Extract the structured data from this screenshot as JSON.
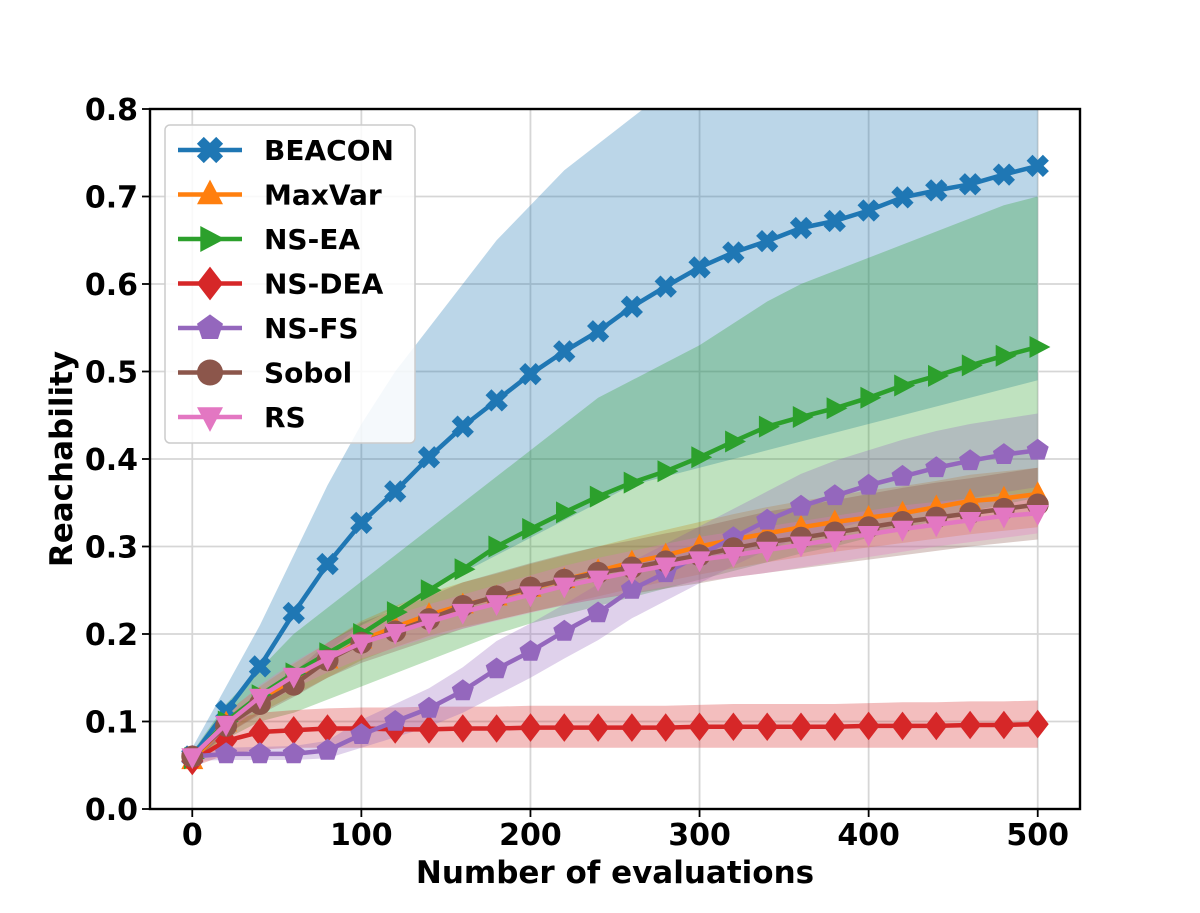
{
  "chart_data": {
    "type": "line",
    "title": "",
    "xlabel": "Number of evaluations",
    "ylabel": "Reachability",
    "xlim": [
      -25,
      525
    ],
    "ylim": [
      0.0,
      0.8
    ],
    "xticks": [
      0,
      100,
      200,
      300,
      400,
      500
    ],
    "yticks": [
      0.0,
      0.1,
      0.2,
      0.3,
      0.4,
      0.5,
      0.6,
      0.7,
      0.8
    ],
    "xtick_labels": [
      "0",
      "100",
      "200",
      "300",
      "400",
      "500"
    ],
    "ytick_labels": [
      "0.0",
      "0.1",
      "0.2",
      "0.3",
      "0.4",
      "0.5",
      "0.6",
      "0.7",
      "0.8"
    ],
    "grid": true,
    "legend_position": "top-left",
    "x": [
      0,
      20,
      40,
      60,
      80,
      100,
      120,
      140,
      160,
      180,
      200,
      220,
      240,
      260,
      280,
      300,
      320,
      340,
      360,
      380,
      400,
      420,
      440,
      460,
      480,
      500
    ],
    "series": [
      {
        "name": "BEACON",
        "color": "#1f77b4",
        "marker": "x-filled",
        "values": [
          0.06,
          0.112,
          0.163,
          0.224,
          0.28,
          0.327,
          0.363,
          0.402,
          0.437,
          0.467,
          0.497,
          0.523,
          0.546,
          0.574,
          0.597,
          0.619,
          0.636,
          0.649,
          0.664,
          0.672,
          0.684,
          0.699,
          0.707,
          0.714,
          0.725,
          0.735
        ],
        "lower": [
          0.05,
          0.09,
          0.12,
          0.15,
          0.18,
          0.21,
          0.23,
          0.25,
          0.27,
          0.29,
          0.31,
          0.33,
          0.35,
          0.37,
          0.38,
          0.39,
          0.4,
          0.41,
          0.42,
          0.43,
          0.44,
          0.45,
          0.46,
          0.47,
          0.48,
          0.49
        ],
        "upper": [
          0.07,
          0.14,
          0.21,
          0.29,
          0.37,
          0.44,
          0.5,
          0.55,
          0.6,
          0.65,
          0.69,
          0.73,
          0.76,
          0.79,
          0.82,
          0.84,
          0.86,
          0.88,
          0.89,
          0.9,
          0.91,
          0.92,
          0.93,
          0.93,
          0.94,
          0.95
        ]
      },
      {
        "name": "MaxVar",
        "color": "#ff7f0e",
        "marker": "triangle-up",
        "values": [
          0.055,
          0.098,
          0.125,
          0.148,
          0.17,
          0.193,
          0.208,
          0.222,
          0.233,
          0.242,
          0.252,
          0.262,
          0.272,
          0.282,
          0.29,
          0.3,
          0.308,
          0.315,
          0.322,
          0.328,
          0.333,
          0.338,
          0.345,
          0.352,
          0.355,
          0.36
        ],
        "lower": [
          0.05,
          0.085,
          0.11,
          0.13,
          0.15,
          0.17,
          0.185,
          0.198,
          0.208,
          0.216,
          0.225,
          0.234,
          0.243,
          0.252,
          0.26,
          0.268,
          0.275,
          0.282,
          0.288,
          0.294,
          0.299,
          0.304,
          0.309,
          0.314,
          0.318,
          0.322
        ],
        "upper": [
          0.062,
          0.11,
          0.14,
          0.166,
          0.19,
          0.215,
          0.232,
          0.247,
          0.259,
          0.269,
          0.28,
          0.29,
          0.3,
          0.31,
          0.319,
          0.328,
          0.337,
          0.345,
          0.352,
          0.358,
          0.364,
          0.369,
          0.375,
          0.382,
          0.386,
          0.39
        ]
      },
      {
        "name": "NS-EA",
        "color": "#2ca02c",
        "marker": "triangle-right",
        "values": [
          0.058,
          0.1,
          0.13,
          0.155,
          0.178,
          0.2,
          0.225,
          0.25,
          0.274,
          0.3,
          0.32,
          0.339,
          0.357,
          0.373,
          0.386,
          0.402,
          0.42,
          0.437,
          0.448,
          0.458,
          0.47,
          0.484,
          0.495,
          0.507,
          0.518,
          0.528
        ],
        "lower": [
          0.05,
          0.08,
          0.1,
          0.11,
          0.125,
          0.14,
          0.155,
          0.17,
          0.185,
          0.2,
          0.212,
          0.222,
          0.232,
          0.242,
          0.252,
          0.262,
          0.272,
          0.282,
          0.292,
          0.3,
          0.31,
          0.32,
          0.33,
          0.34,
          0.348,
          0.356
        ],
        "upper": [
          0.065,
          0.12,
          0.16,
          0.2,
          0.23,
          0.26,
          0.29,
          0.32,
          0.35,
          0.38,
          0.41,
          0.44,
          0.47,
          0.49,
          0.51,
          0.53,
          0.555,
          0.58,
          0.6,
          0.615,
          0.63,
          0.645,
          0.66,
          0.675,
          0.69,
          0.7
        ]
      },
      {
        "name": "NS-DEA",
        "color": "#d62728",
        "marker": "diamond",
        "values": [
          0.055,
          0.078,
          0.088,
          0.09,
          0.092,
          0.092,
          0.091,
          0.091,
          0.092,
          0.092,
          0.093,
          0.093,
          0.093,
          0.093,
          0.093,
          0.094,
          0.094,
          0.094,
          0.094,
          0.094,
          0.095,
          0.095,
          0.095,
          0.096,
          0.096,
          0.097
        ],
        "lower": [
          0.048,
          0.062,
          0.068,
          0.07,
          0.07,
          0.07,
          0.07,
          0.07,
          0.07,
          0.07,
          0.07,
          0.07,
          0.07,
          0.07,
          0.07,
          0.07,
          0.07,
          0.07,
          0.07,
          0.07,
          0.07,
          0.07,
          0.07,
          0.07,
          0.07,
          0.07
        ],
        "upper": [
          0.065,
          0.1,
          0.11,
          0.113,
          0.115,
          0.116,
          0.116,
          0.117,
          0.117,
          0.117,
          0.118,
          0.118,
          0.118,
          0.118,
          0.118,
          0.119,
          0.12,
          0.12,
          0.12,
          0.12,
          0.121,
          0.122,
          0.122,
          0.123,
          0.123,
          0.124
        ]
      },
      {
        "name": "NS-FS",
        "color": "#9467bd",
        "marker": "pentagon",
        "values": [
          0.06,
          0.063,
          0.063,
          0.063,
          0.067,
          0.085,
          0.1,
          0.115,
          0.135,
          0.16,
          0.18,
          0.203,
          0.224,
          0.251,
          0.27,
          0.29,
          0.31,
          0.33,
          0.346,
          0.358,
          0.37,
          0.38,
          0.39,
          0.398,
          0.405,
          0.41
        ],
        "lower": [
          0.055,
          0.056,
          0.056,
          0.056,
          0.058,
          0.07,
          0.082,
          0.094,
          0.11,
          0.13,
          0.15,
          0.172,
          0.193,
          0.218,
          0.238,
          0.258,
          0.278,
          0.296,
          0.31,
          0.32,
          0.33,
          0.34,
          0.348,
          0.355,
          0.362,
          0.368
        ],
        "upper": [
          0.065,
          0.07,
          0.071,
          0.072,
          0.078,
          0.102,
          0.12,
          0.138,
          0.162,
          0.192,
          0.212,
          0.234,
          0.257,
          0.283,
          0.303,
          0.323,
          0.343,
          0.363,
          0.383,
          0.398,
          0.41,
          0.422,
          0.432,
          0.44,
          0.446,
          0.452
        ]
      },
      {
        "name": "Sobol",
        "color": "#8c564b",
        "marker": "circle",
        "values": [
          0.06,
          0.095,
          0.12,
          0.142,
          0.17,
          0.19,
          0.203,
          0.217,
          0.232,
          0.243,
          0.253,
          0.262,
          0.27,
          0.276,
          0.283,
          0.29,
          0.298,
          0.305,
          0.31,
          0.316,
          0.322,
          0.328,
          0.333,
          0.338,
          0.343,
          0.348
        ],
        "lower": [
          0.055,
          0.085,
          0.108,
          0.128,
          0.15,
          0.167,
          0.18,
          0.193,
          0.206,
          0.216,
          0.225,
          0.233,
          0.24,
          0.246,
          0.252,
          0.258,
          0.265,
          0.27,
          0.275,
          0.28,
          0.285,
          0.29,
          0.295,
          0.3,
          0.304,
          0.308
        ],
        "upper": [
          0.066,
          0.105,
          0.132,
          0.156,
          0.19,
          0.213,
          0.228,
          0.243,
          0.259,
          0.27,
          0.281,
          0.291,
          0.3,
          0.307,
          0.315,
          0.322,
          0.331,
          0.34,
          0.346,
          0.353,
          0.36,
          0.367,
          0.373,
          0.378,
          0.384,
          0.39
        ]
      },
      {
        "name": "RS",
        "color": "#e377c2",
        "marker": "triangle-down",
        "values": [
          0.06,
          0.097,
          0.128,
          0.152,
          0.172,
          0.19,
          0.202,
          0.214,
          0.225,
          0.235,
          0.245,
          0.255,
          0.263,
          0.271,
          0.278,
          0.285,
          0.29,
          0.296,
          0.302,
          0.308,
          0.314,
          0.32,
          0.325,
          0.33,
          0.335,
          0.338
        ],
        "lower": [
          0.055,
          0.088,
          0.116,
          0.138,
          0.156,
          0.172,
          0.184,
          0.196,
          0.206,
          0.215,
          0.224,
          0.233,
          0.24,
          0.247,
          0.254,
          0.26,
          0.265,
          0.27,
          0.276,
          0.282,
          0.288,
          0.294,
          0.3,
          0.305,
          0.31,
          0.315
        ],
        "upper": [
          0.066,
          0.108,
          0.142,
          0.168,
          0.19,
          0.21,
          0.222,
          0.234,
          0.245,
          0.256,
          0.267,
          0.278,
          0.287,
          0.295,
          0.303,
          0.311,
          0.317,
          0.323,
          0.329,
          0.335,
          0.341,
          0.347,
          0.351,
          0.355,
          0.359,
          0.362
        ]
      }
    ]
  }
}
